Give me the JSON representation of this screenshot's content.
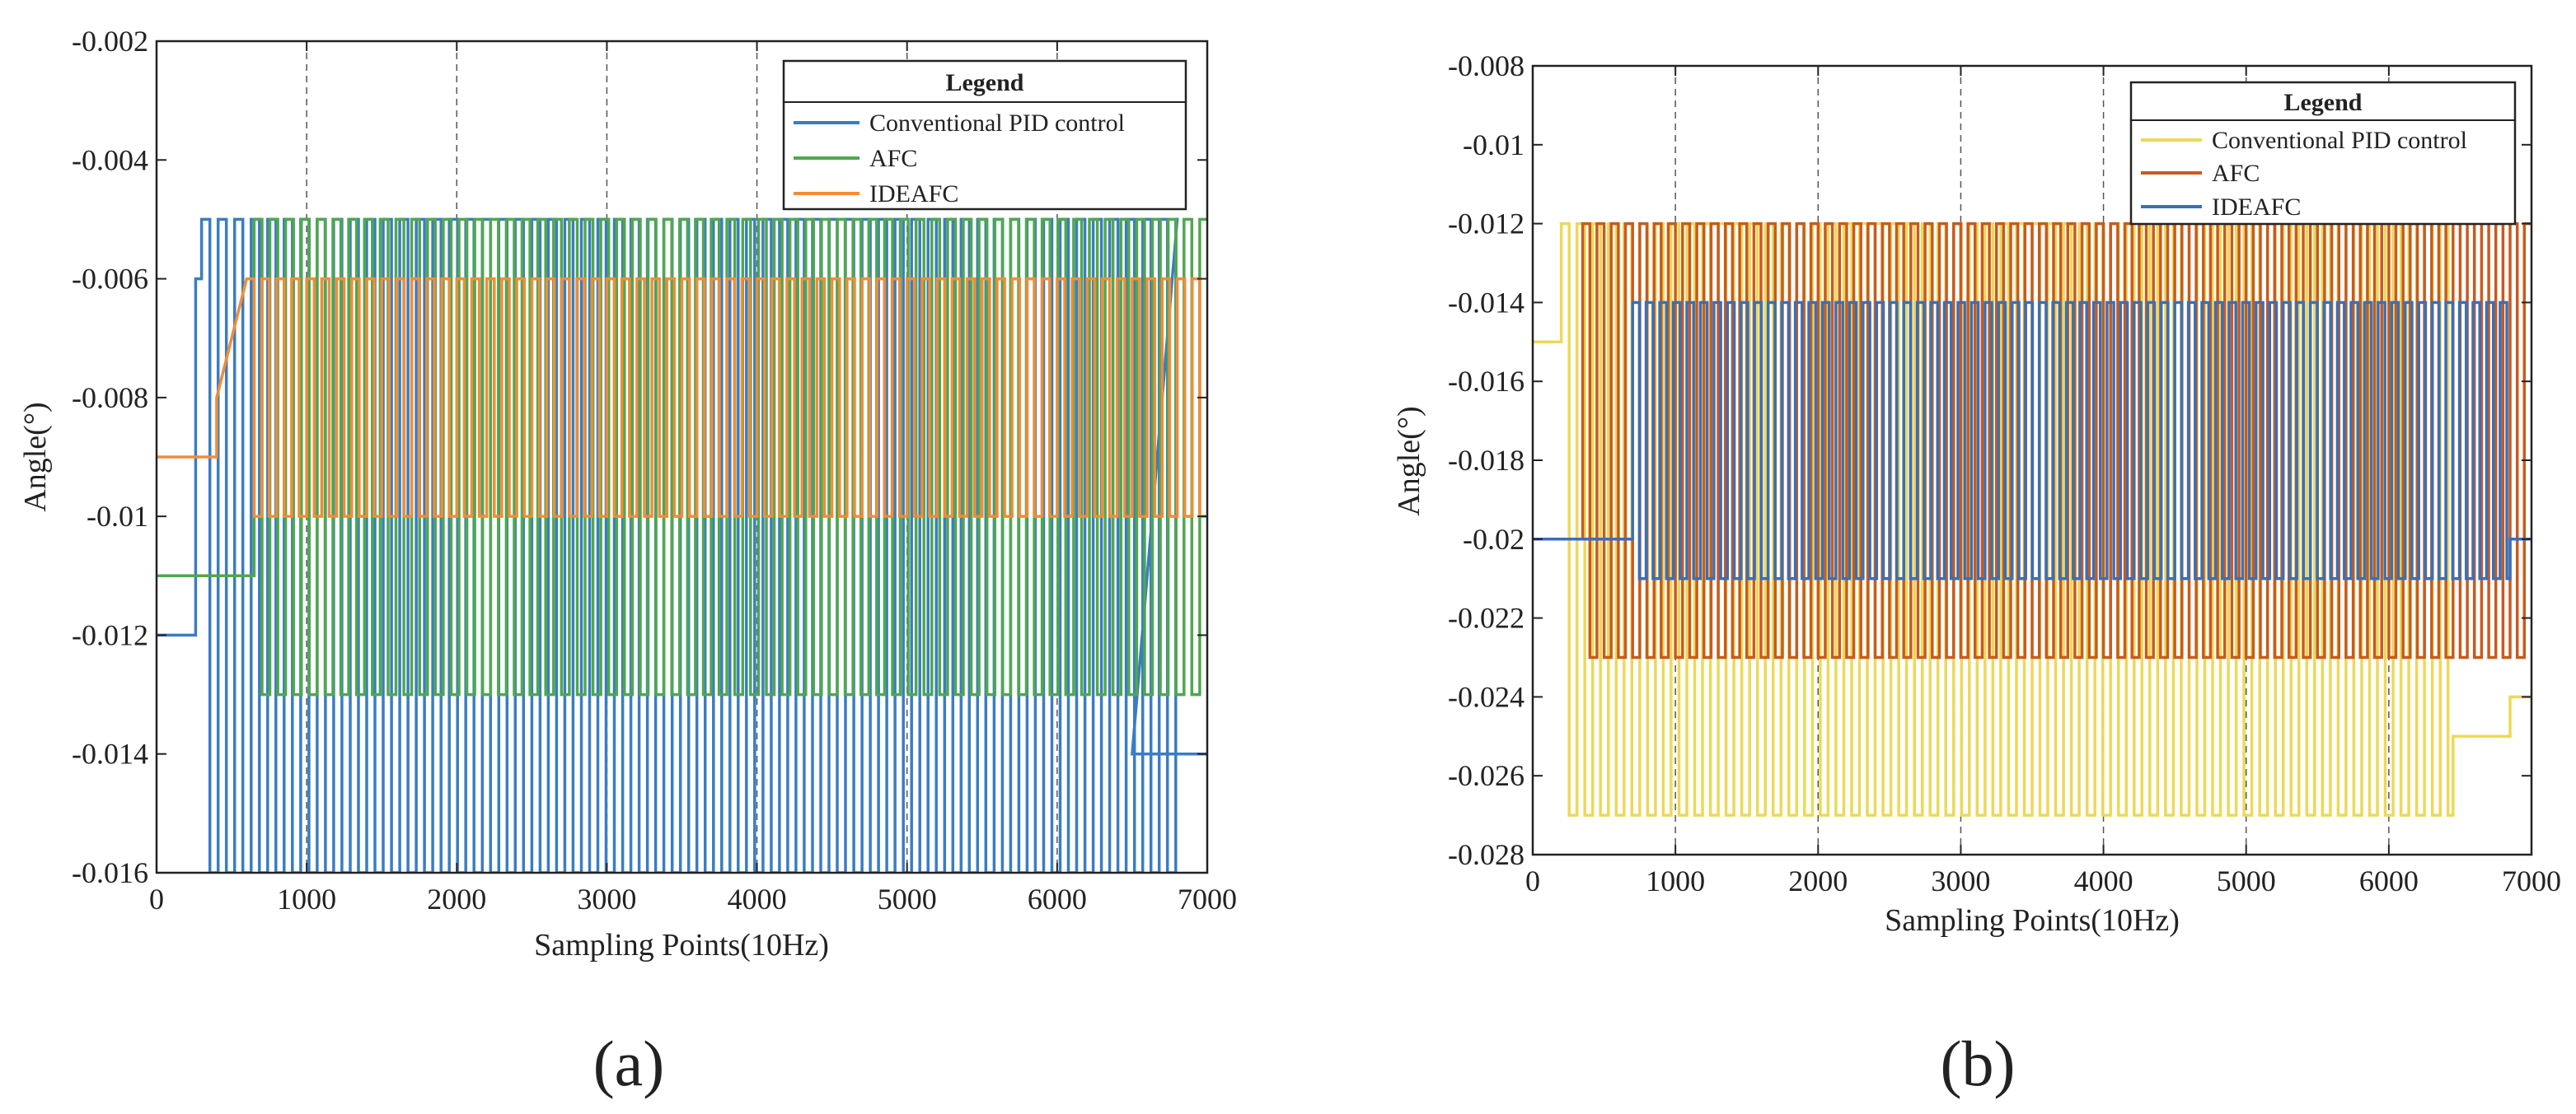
{
  "chart_data": [
    {
      "type": "line",
      "panel_label": "(a)",
      "xlabel": "Sampling Points(10Hz)",
      "ylabel": "Angle(°)",
      "xlim": [
        0,
        7000
      ],
      "ylim": [
        -0.016,
        -0.002
      ],
      "xticks": [
        0,
        1000,
        2000,
        3000,
        4000,
        5000,
        6000,
        7000
      ],
      "yticks": [
        -0.016,
        -0.014,
        -0.012,
        -0.01,
        -0.008,
        -0.006,
        -0.004,
        -0.002
      ],
      "ytick_labels": [
        "-0.016",
        "-0.014",
        "-0.012",
        "-0.01",
        "-0.008",
        "-0.006",
        "-0.004",
        "-0.002"
      ],
      "legend": {
        "title": "Legend",
        "position": "top-right"
      },
      "series": [
        {
          "name": "Conventional PID control",
          "color": "#3a7dc2",
          "x_start": 300,
          "x_end": 6800,
          "period": 110,
          "low": -0.016,
          "high": -0.005,
          "lead": [
            [
              0,
              -0.012
            ],
            [
              260,
              -0.012
            ],
            [
              260,
              -0.006
            ],
            [
              300,
              -0.006
            ]
          ],
          "tail": [
            [
              6500,
              -0.014
            ],
            [
              7000,
              -0.014
            ]
          ]
        },
        {
          "name": "AFC",
          "color": "#4fa84e",
          "x_start": 650,
          "x_end": 7000,
          "period": 105,
          "low": -0.013,
          "high": -0.005,
          "lead": [
            [
              0,
              -0.011
            ],
            [
              650,
              -0.011
            ]
          ],
          "tail": []
        },
        {
          "name": "IDEAFC",
          "color": "#f28c38",
          "x_start": 600,
          "x_end": 7000,
          "period": 100,
          "low": -0.01,
          "high": -0.006,
          "lead": [
            [
              0,
              -0.009
            ],
            [
              400,
              -0.009
            ],
            [
              400,
              -0.008
            ],
            [
              500,
              -0.007
            ],
            [
              600,
              -0.006
            ]
          ],
          "tail": []
        }
      ]
    },
    {
      "type": "line",
      "panel_label": "(b)",
      "xlabel": "Sampling Points(10Hz)",
      "ylabel": "Angle(°)",
      "xlim": [
        0,
        7000
      ],
      "ylim": [
        -0.028,
        -0.008
      ],
      "xticks": [
        0,
        1000,
        2000,
        3000,
        4000,
        5000,
        6000,
        7000
      ],
      "yticks": [
        -0.028,
        -0.026,
        -0.024,
        -0.022,
        -0.02,
        -0.018,
        -0.016,
        -0.014,
        -0.012,
        -0.01,
        -0.008
      ],
      "ytick_labels": [
        "-0.028",
        "-0.026",
        "-0.024",
        "-0.022",
        "-0.02",
        "-0.018",
        "-0.016",
        "-0.014",
        "-0.012",
        "-0.01",
        "-0.008"
      ],
      "legend": {
        "title": "Legend",
        "position": "top-right"
      },
      "series": [
        {
          "name": "Conventional PID control",
          "color": "#ecd957",
          "x_start": 200,
          "x_end": 6450,
          "period": 110,
          "low": -0.027,
          "high": -0.012,
          "lead": [
            [
              0,
              -0.015
            ],
            [
              200,
              -0.015
            ]
          ],
          "tail": [
            [
              6450,
              -0.025
            ],
            [
              6850,
              -0.025
            ],
            [
              6850,
              -0.024
            ],
            [
              7000,
              -0.024
            ]
          ]
        },
        {
          "name": "AFC",
          "color": "#c95a1c",
          "x_start": 350,
          "x_end": 7000,
          "period": 100,
          "low": -0.023,
          "high": -0.012,
          "lead": [
            [
              0,
              -0.02
            ],
            [
              350,
              -0.02
            ]
          ],
          "tail": []
        },
        {
          "name": "IDEAFC",
          "color": "#3a6fb8",
          "x_start": 700,
          "x_end": 6850,
          "period": 95,
          "low": -0.021,
          "high": -0.014,
          "lead": [
            [
              0,
              -0.02
            ],
            [
              700,
              -0.02
            ]
          ],
          "tail": [
            [
              6850,
              -0.02
            ],
            [
              7000,
              -0.02
            ]
          ]
        }
      ]
    }
  ]
}
